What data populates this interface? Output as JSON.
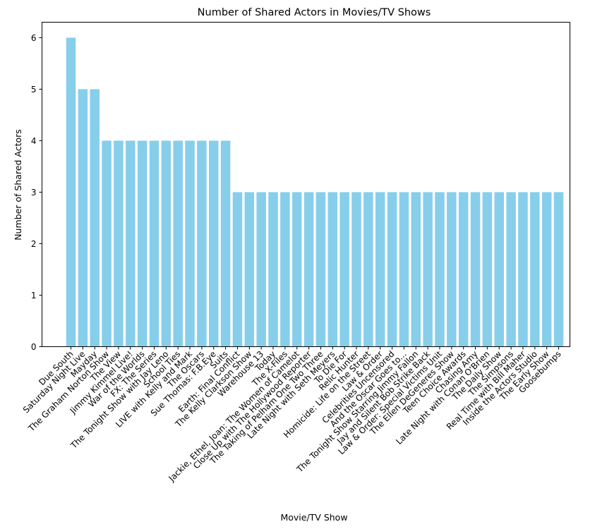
{
  "chart_data": {
    "type": "bar",
    "title": "Number of Shared Actors in Movies/TV Shows",
    "xlabel": "Movie/TV Show",
    "ylabel": "Number of Shared Actors",
    "ylim": [
      0,
      6.3
    ],
    "yticks": [
      0,
      1,
      2,
      3,
      4,
      5,
      6
    ],
    "grid": false,
    "bar_color": "#87ceeb",
    "categories": [
      "Due South",
      "Saturday Night Live",
      "Mayday",
      "The Graham Norton Show",
      "The View",
      "Jimmy Kimmel Live!",
      "War of the Worlds",
      "FX: The Series",
      "The Tonight Show with Jay Leno",
      "School Ties",
      "LIVE with Kelly and Mark",
      "The Oscars",
      "Sue Thomas: F.B.Eye",
      "Suits",
      "Earth: Final Conflict",
      "The Kelly Clarkson Show",
      "Warehouse 13",
      "Today",
      "The X-Files",
      "Jackie, Ethel, Joan: The Women of Camelot",
      "Close Up with The Hollywood Reporter",
      "The Taking of Pelham One Two Three",
      "Late Night with Seth Meyers",
      "To Die For",
      "Relic Hunter",
      "Homicide: Life on the Street",
      "Law & Order",
      "Celebrities Uncensored",
      "And the Oscar Goes to...",
      "The Tonight Show Starring Jimmy Fallon",
      "Jay and Silent Bob Strike Back",
      "Law & Order: Special Victims Unit",
      "The Ellen DeGeneres Show",
      "Teen Choice Awards",
      "Chasing Amy",
      "Late Night with Conan O'Brien",
      "The Daily Show",
      "The Simpsons",
      "Real Time with Bill Maher",
      "Inside the Actors Studio",
      "The Early Show",
      "Goosebumps"
    ],
    "values": [
      6,
      5,
      5,
      4,
      4,
      4,
      4,
      4,
      4,
      4,
      4,
      4,
      4,
      4,
      3,
      3,
      3,
      3,
      3,
      3,
      3,
      3,
      3,
      3,
      3,
      3,
      3,
      3,
      3,
      3,
      3,
      3,
      3,
      3,
      3,
      3,
      3,
      3,
      3,
      3,
      3,
      3
    ]
  }
}
